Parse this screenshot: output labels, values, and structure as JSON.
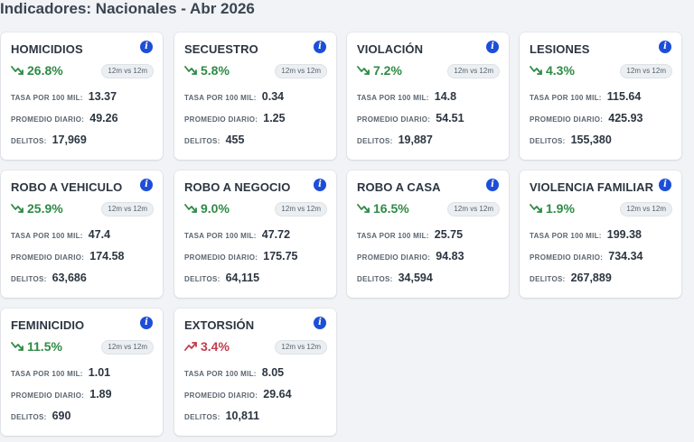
{
  "header": {
    "title": "Indicadores: Nacionales - Abr 2026"
  },
  "labels": {
    "rate": "TASA POR 100 MIL:",
    "daily": "PROMEDIO DIARIO:",
    "crimes": "DELITOS:",
    "period": "12m vs 12m"
  },
  "colors": {
    "down": "#2e8b45",
    "up": "#c23d4b",
    "info": "#1d4ed8"
  },
  "cards": [
    {
      "title": "HOMICIDIOS",
      "change": "26.8%",
      "trend": "down",
      "rate": "13.37",
      "daily": "49.26",
      "crimes": "17,969"
    },
    {
      "title": "SECUESTRO",
      "change": "5.8%",
      "trend": "down",
      "rate": "0.34",
      "daily": "1.25",
      "crimes": "455"
    },
    {
      "title": "VIOLACIÓN",
      "change": "7.2%",
      "trend": "down",
      "rate": "14.8",
      "daily": "54.51",
      "crimes": "19,887"
    },
    {
      "title": "LESIONES",
      "change": "4.3%",
      "trend": "down",
      "rate": "115.64",
      "daily": "425.93",
      "crimes": "155,380"
    },
    {
      "title": "ROBO A VEHICULO",
      "change": "25.9%",
      "trend": "down",
      "rate": "47.4",
      "daily": "174.58",
      "crimes": "63,686"
    },
    {
      "title": "ROBO A NEGOCIO",
      "change": "9.0%",
      "trend": "down",
      "rate": "47.72",
      "daily": "175.75",
      "crimes": "64,115"
    },
    {
      "title": "ROBO A CASA",
      "change": "16.5%",
      "trend": "down",
      "rate": "25.75",
      "daily": "94.83",
      "crimes": "34,594"
    },
    {
      "title": "VIOLENCIA FAMILIAR",
      "change": "1.9%",
      "trend": "down",
      "rate": "199.38",
      "daily": "734.34",
      "crimes": "267,889"
    },
    {
      "title": "FEMINICIDIO",
      "change": "11.5%",
      "trend": "down",
      "rate": "1.01",
      "daily": "1.89",
      "crimes": "690"
    },
    {
      "title": "EXTORSIÓN",
      "change": "3.4%",
      "trend": "up",
      "rate": "8.05",
      "daily": "29.64",
      "crimes": "10,811"
    }
  ]
}
